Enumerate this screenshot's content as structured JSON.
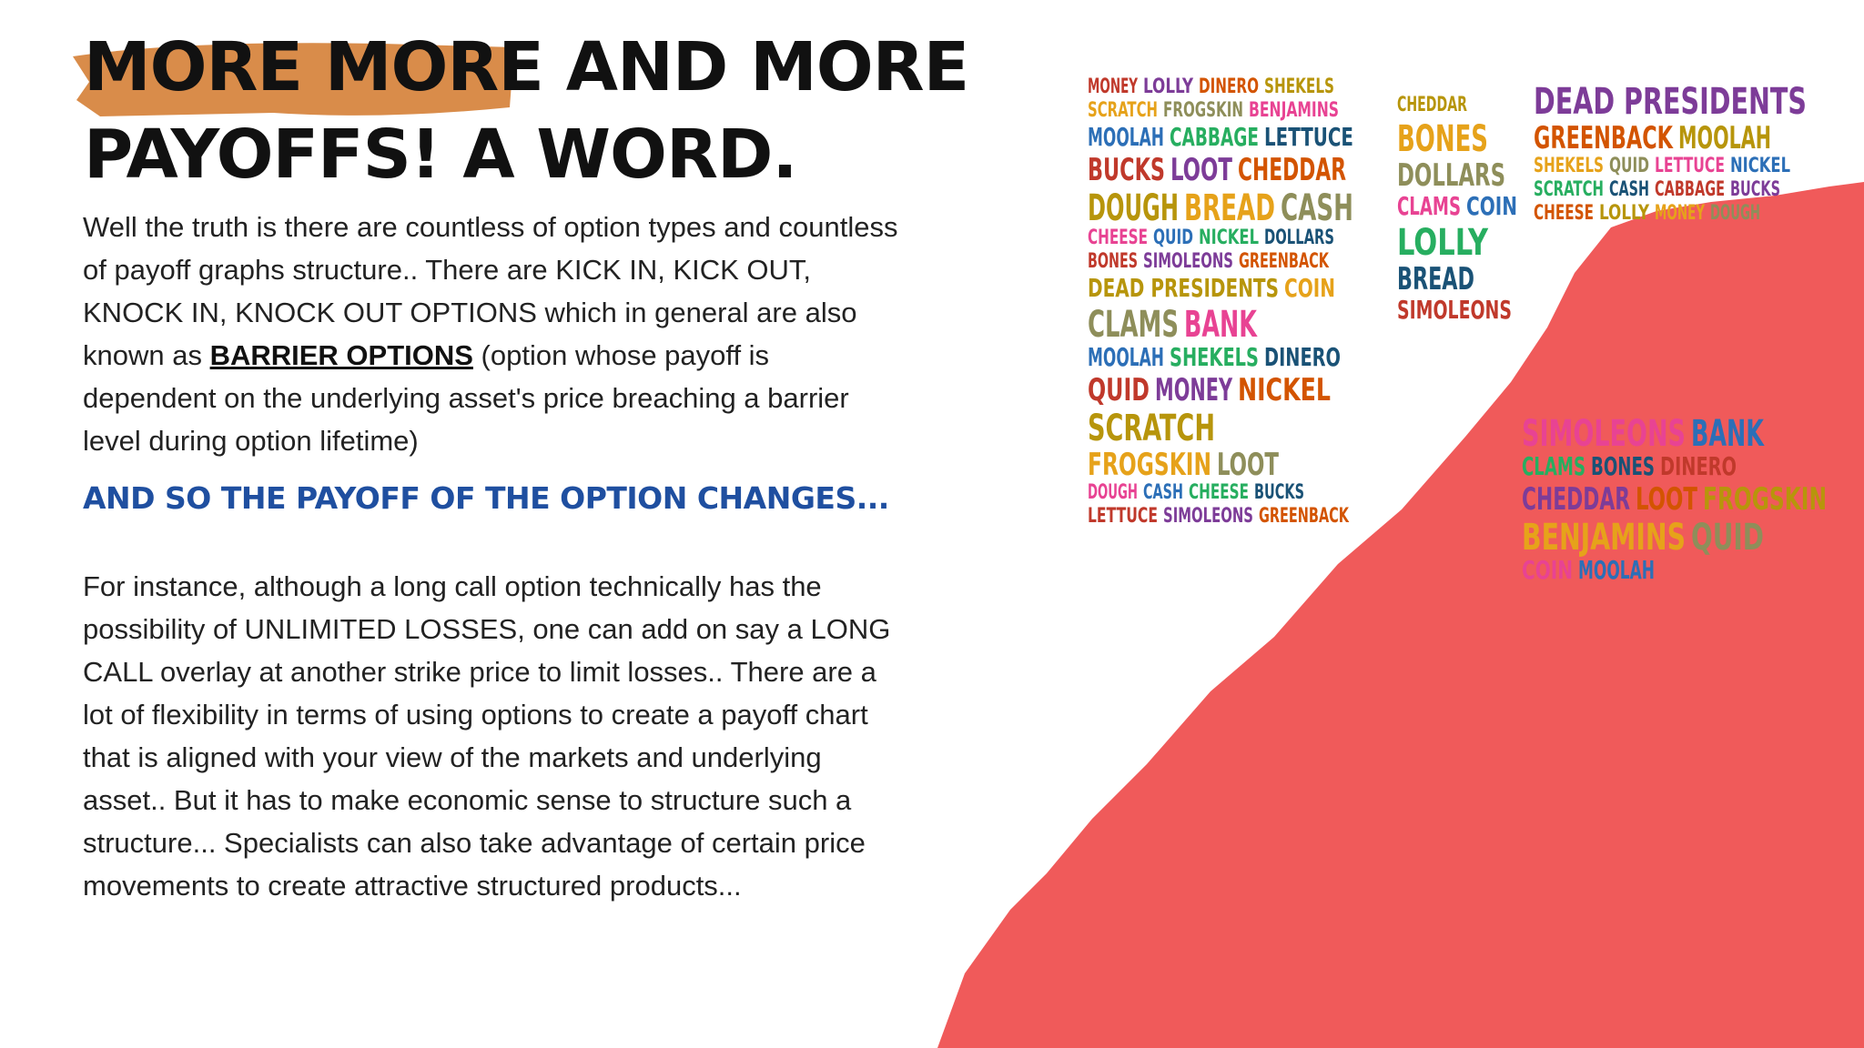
{
  "header": {
    "title_highlight": "MORE MORE",
    "title_rest_line1": "AND MORE",
    "title_line2": "PAYOFFS! A WORD."
  },
  "paragraph_1": {
    "before": "Well the truth is there are countless of option types and countless of payoff graphs structure.. There are KICK IN, KICK OUT, KNOCK IN, KNOCK OUT OPTIONS which in general are also known as ",
    "link": "BARRIER OPTIONS",
    "after": " (option whose payoff is dependent on the underlying asset's price breaching a barrier level during option lifetime)"
  },
  "subheading": "AND SO THE PAYOFF OF THE OPTION CHANGES...",
  "paragraph_2": "For instance, although a long call option technically has the possibility of UNLIMITED LOSSES, one can add on say a LONG CALL overlay at another strike price to limit losses.. There are a lot of flexibility in terms of using options to create a payoff chart that is aligned with your view of the markets and underlying asset.. But it has to make economic sense to structure such a structure... Specialists can also take advantage of certain price movements to create attractive structured products...",
  "word_colors": [
    "#c0392b",
    "#2c6fb7",
    "#e6a21a",
    "#7d3c98",
    "#27ae60",
    "#8e8e5a",
    "#d35400",
    "#1a5276",
    "#e84393",
    "#b7950b"
  ],
  "word_cloud": [
    "MONEY",
    "LOLLY",
    "DINERO",
    "SHEKELS",
    "SCRATCH",
    "FROGSKIN",
    "BENJAMINS",
    "MOOLAH",
    "CABBAGE",
    "LETTUCE",
    "BUCKS",
    "LOOT",
    "CHEDDAR",
    "DOUGH",
    "BREAD",
    "CASH",
    "CHEESE",
    "QUID",
    "NICKEL",
    "DOLLARS",
    "BONES",
    "SIMOLEONS",
    "GREENBACK",
    "DEAD PRESIDENTS",
    "COIN",
    "CLAMS",
    "BANK",
    "MOOLAH",
    "SHEKELS",
    "DINERO",
    "QUID",
    "MONEY",
    "NICKEL",
    "SCRATCH",
    "FROGSKIN",
    "LOOT",
    "DOUGH",
    "CASH",
    "CHEESE",
    "BUCKS",
    "LETTUCE",
    "SIMOLEONS",
    "GREENBACK",
    "CHEDDAR",
    "BONES",
    "DOLLARS",
    "CLAMS",
    "COIN",
    "LOLLY",
    "BREAD",
    "SIMOLEONS",
    "DEAD PRESIDENTS",
    "GREENBACK",
    "MOOLAH",
    "SHEKELS",
    "QUID",
    "LETTUCE",
    "NICKEL",
    "SCRATCH",
    "CASH",
    "CABBAGE",
    "BUCKS",
    "CHEESE",
    "LOLLY",
    "MONEY",
    "DOUGH",
    "SIMOLEONS",
    "BANK",
    "CLAMS",
    "BONES",
    "DINERO",
    "CHEDDAR",
    "LOOT",
    "FROGSKIN",
    "BENJAMINS",
    "QUID",
    "COIN",
    "MOOLAH"
  ]
}
